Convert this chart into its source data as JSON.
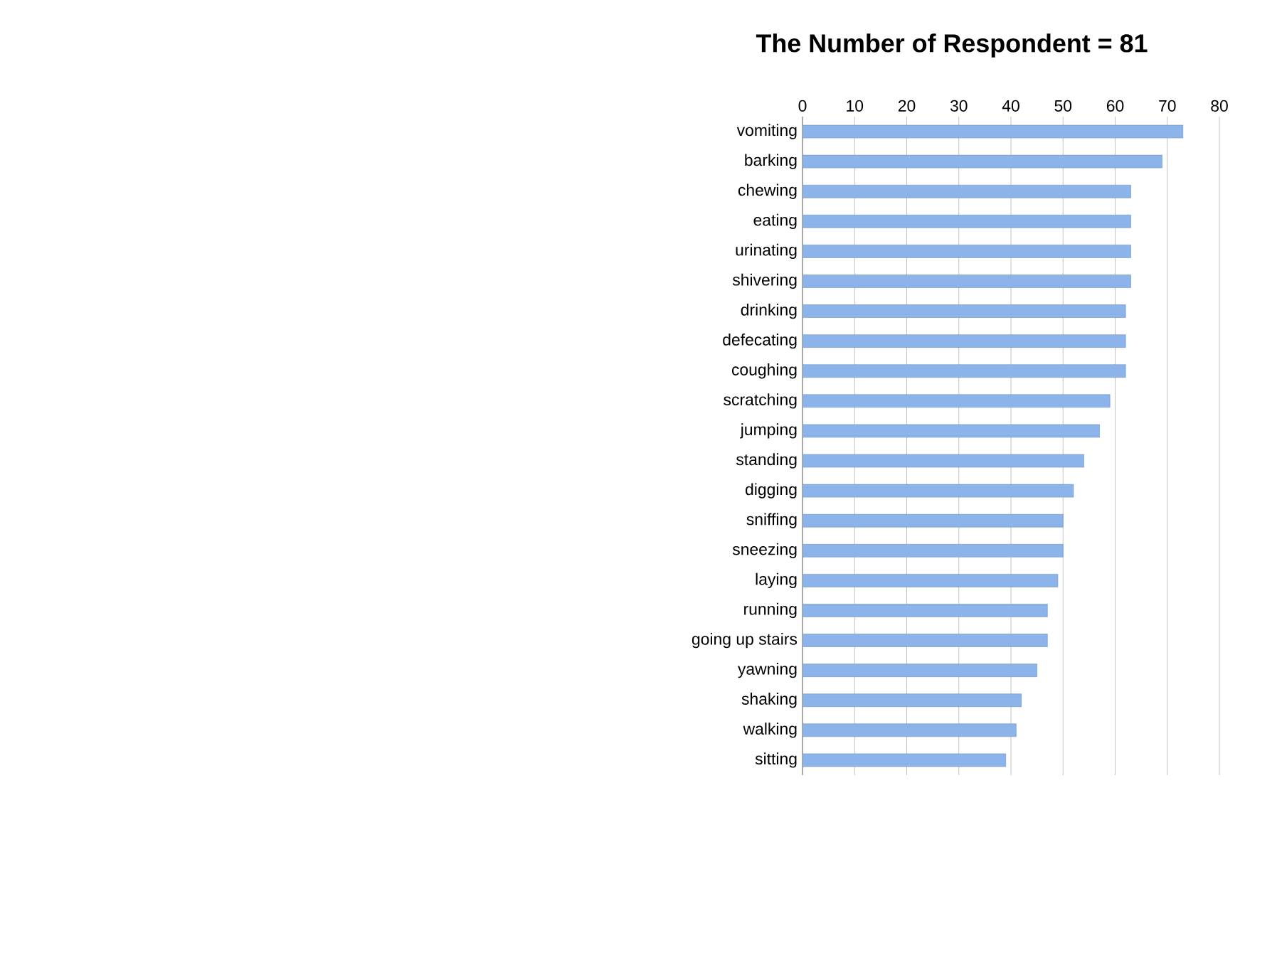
{
  "chart_data": {
    "type": "bar",
    "orientation": "horizontal",
    "title": "The Number of Respondent = 81",
    "categories": [
      "vomiting",
      "barking",
      "chewing",
      "eating",
      "urinating",
      "shivering",
      "drinking",
      "defecating",
      "coughing",
      "scratching",
      "jumping",
      "standing",
      "digging",
      "sniffing",
      "sneezing",
      "laying",
      "running",
      "going up stairs",
      "yawning",
      "shaking",
      "walking",
      "sitting"
    ],
    "values": [
      73,
      69,
      63,
      63,
      63,
      63,
      62,
      62,
      62,
      59,
      57,
      54,
      52,
      50,
      50,
      49,
      47,
      47,
      45,
      42,
      41,
      39
    ],
    "color": "#8cb4ea",
    "xlim": [
      0,
      80
    ],
    "xticks": [
      0,
      10,
      20,
      30,
      40,
      50,
      60,
      70,
      80
    ],
    "grid": "x"
  }
}
